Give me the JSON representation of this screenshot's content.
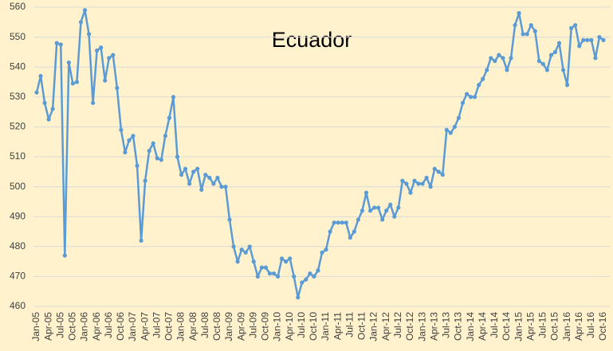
{
  "chart_data": {
    "type": "line",
    "title": "Ecuador",
    "categories": [
      "Jan-05",
      null,
      null,
      "Apr-05",
      null,
      null,
      "Jul-05",
      null,
      null,
      "Oct-05",
      null,
      null,
      "Jan-06",
      null,
      null,
      "Apr-06",
      null,
      null,
      "Jul-06",
      null,
      null,
      "Oct-06",
      null,
      null,
      "Jan-07",
      null,
      null,
      "Apr-07",
      null,
      null,
      "Jul-07",
      null,
      null,
      "Oct-07",
      null,
      null,
      "Jan-08",
      null,
      null,
      "Apr-08",
      null,
      null,
      "Jul-08",
      null,
      null,
      "Oct-08",
      null,
      null,
      "Jan-09",
      null,
      null,
      "Apr-09",
      null,
      null,
      "Jul-09",
      null,
      null,
      "Oct-09",
      null,
      null,
      "Jan-10",
      null,
      null,
      "Apr-10",
      null,
      null,
      "Jul-10",
      null,
      null,
      "Oct-10",
      null,
      null,
      "Jan-11",
      null,
      null,
      "Apr-11",
      null,
      null,
      "Jul-11",
      null,
      null,
      "Oct-11",
      null,
      null,
      "Jan-12",
      null,
      null,
      "Apr-12",
      null,
      null,
      "Jul-12",
      null,
      null,
      "Oct-12",
      null,
      null,
      "Jan-13",
      null,
      null,
      "Apr-13",
      null,
      null,
      "Jul-13",
      null,
      null,
      "Oct-13",
      null,
      null,
      "Jan-14",
      null,
      null,
      "Apr-14",
      null,
      null,
      "Jul-14",
      null,
      null,
      "Oct-14",
      null,
      null,
      "Jan-15",
      null,
      null,
      "Apr-15",
      null,
      null,
      "Jul-15",
      null,
      null,
      "Oct-15",
      null,
      null,
      "Jan-16",
      null,
      null,
      "Apr-16",
      null,
      null,
      "Jul-16",
      null,
      null,
      "Oct-16"
    ],
    "values": [
      531.5,
      537,
      528,
      522.5,
      526,
      548,
      547.5,
      477,
      541.5,
      534.5,
      535,
      555,
      559,
      551,
      528,
      545.5,
      546.5,
      535.5,
      543,
      544,
      533,
      519,
      511.5,
      515.5,
      517,
      507,
      482,
      502,
      512,
      514.5,
      509.5,
      509,
      517,
      523,
      530,
      510,
      504,
      506,
      501,
      505,
      506,
      499,
      504,
      503,
      501,
      503,
      500,
      500,
      489,
      480,
      475,
      479,
      478,
      480,
      475,
      470,
      473,
      473,
      471,
      471,
      470,
      476,
      475,
      476,
      470,
      463,
      468,
      469,
      471,
      470,
      472,
      478,
      479,
      485,
      488,
      488,
      488,
      488,
      483,
      485,
      489,
      492,
      498,
      492,
      493,
      493,
      489,
      492,
      494,
      490,
      493,
      502,
      501,
      498,
      502,
      501,
      501,
      503,
      500,
      506,
      505,
      504,
      519,
      518,
      520,
      523,
      528,
      531,
      530,
      530,
      534,
      536,
      539,
      543,
      542,
      544,
      543,
      539,
      543,
      554,
      558,
      551,
      551,
      554,
      552,
      542,
      541,
      539,
      544,
      545,
      548,
      539,
      534,
      553,
      554,
      547,
      549,
      549,
      549,
      543,
      550,
      549
    ],
    "color": "#5b9bd5",
    "ylim": [
      460,
      560
    ],
    "yticks": [
      460,
      470,
      480,
      490,
      500,
      510,
      520,
      530,
      540,
      550,
      560
    ],
    "grid": true
  }
}
